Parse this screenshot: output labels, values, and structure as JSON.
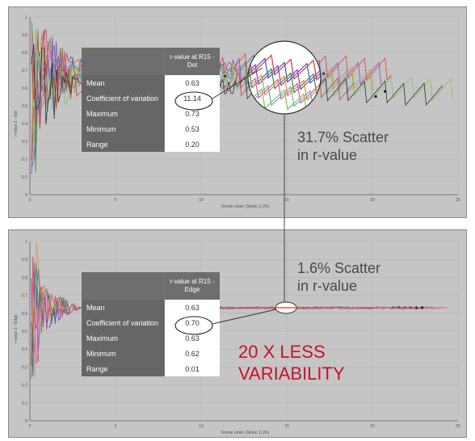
{
  "chart_data": [
    {
      "type": "line",
      "ylabel": "r-value 3 - Dot",
      "xlabel": "Tensile strain (Strain 1) [%]",
      "x_ticks": [
        "0",
        "5",
        "10",
        "15",
        "20",
        "25"
      ],
      "y_ticks": [
        "0",
        "0.1",
        "0.2",
        "0.3",
        "0.4",
        "0.5",
        "0.6",
        "0.7",
        "0.8",
        "0.9",
        "1"
      ],
      "xlim": [
        0,
        25
      ],
      "ylim": [
        0,
        1
      ],
      "series_colors": [
        "#e0312c",
        "#3a56c8",
        "#8c3ab8",
        "#2f8f3a",
        "#e08d2f",
        "#e04fa0",
        "#5bb0c4",
        "#7fc44a",
        "#b04020",
        "#202020"
      ],
      "table": {
        "header": "r-value at R15 - Dot",
        "rows": [
          {
            "label": "Mean",
            "value": "0.63"
          },
          {
            "label": "Coefficient of variation",
            "value": "11.14"
          },
          {
            "label": "Maximum",
            "value": "0.73"
          },
          {
            "label": "Minimum",
            "value": "0.53"
          },
          {
            "label": "Range",
            "value": "0.20"
          }
        ]
      },
      "annotation_line1": "31.7% Scatter",
      "annotation_line2": "in r-value"
    },
    {
      "type": "line",
      "ylabel": "r-value 1 - Edge",
      "xlabel": "Tensile strain (Strain 1) [%]",
      "x_ticks": [
        "0",
        "5",
        "10",
        "15",
        "20",
        "25"
      ],
      "y_ticks": [
        "0",
        "0.1",
        "0.2",
        "0.3",
        "0.4",
        "0.5",
        "0.6",
        "0.7",
        "0.8",
        "0.9",
        "1"
      ],
      "xlim": [
        0,
        25
      ],
      "ylim": [
        0,
        1
      ],
      "series_colors": [
        "#e0312c",
        "#3a56c8",
        "#8c3ab8",
        "#2f8f3a",
        "#e08d2f",
        "#e04fa0"
      ],
      "table": {
        "header": "r-value at R15 - Edge",
        "rows": [
          {
            "label": "Mean",
            "value": "0.63"
          },
          {
            "label": "Coefficient of variation",
            "value": "0.70"
          },
          {
            "label": "Maximum",
            "value": "0.63"
          },
          {
            "label": "Minimum",
            "value": "0.62"
          },
          {
            "label": "Range",
            "value": "0.01"
          }
        ]
      },
      "annotation_line1": "1.6% Scatter",
      "annotation_line2": "in r-value"
    }
  ],
  "callout": {
    "line1": "20 X LESS",
    "line2": "VARIABILITY"
  }
}
